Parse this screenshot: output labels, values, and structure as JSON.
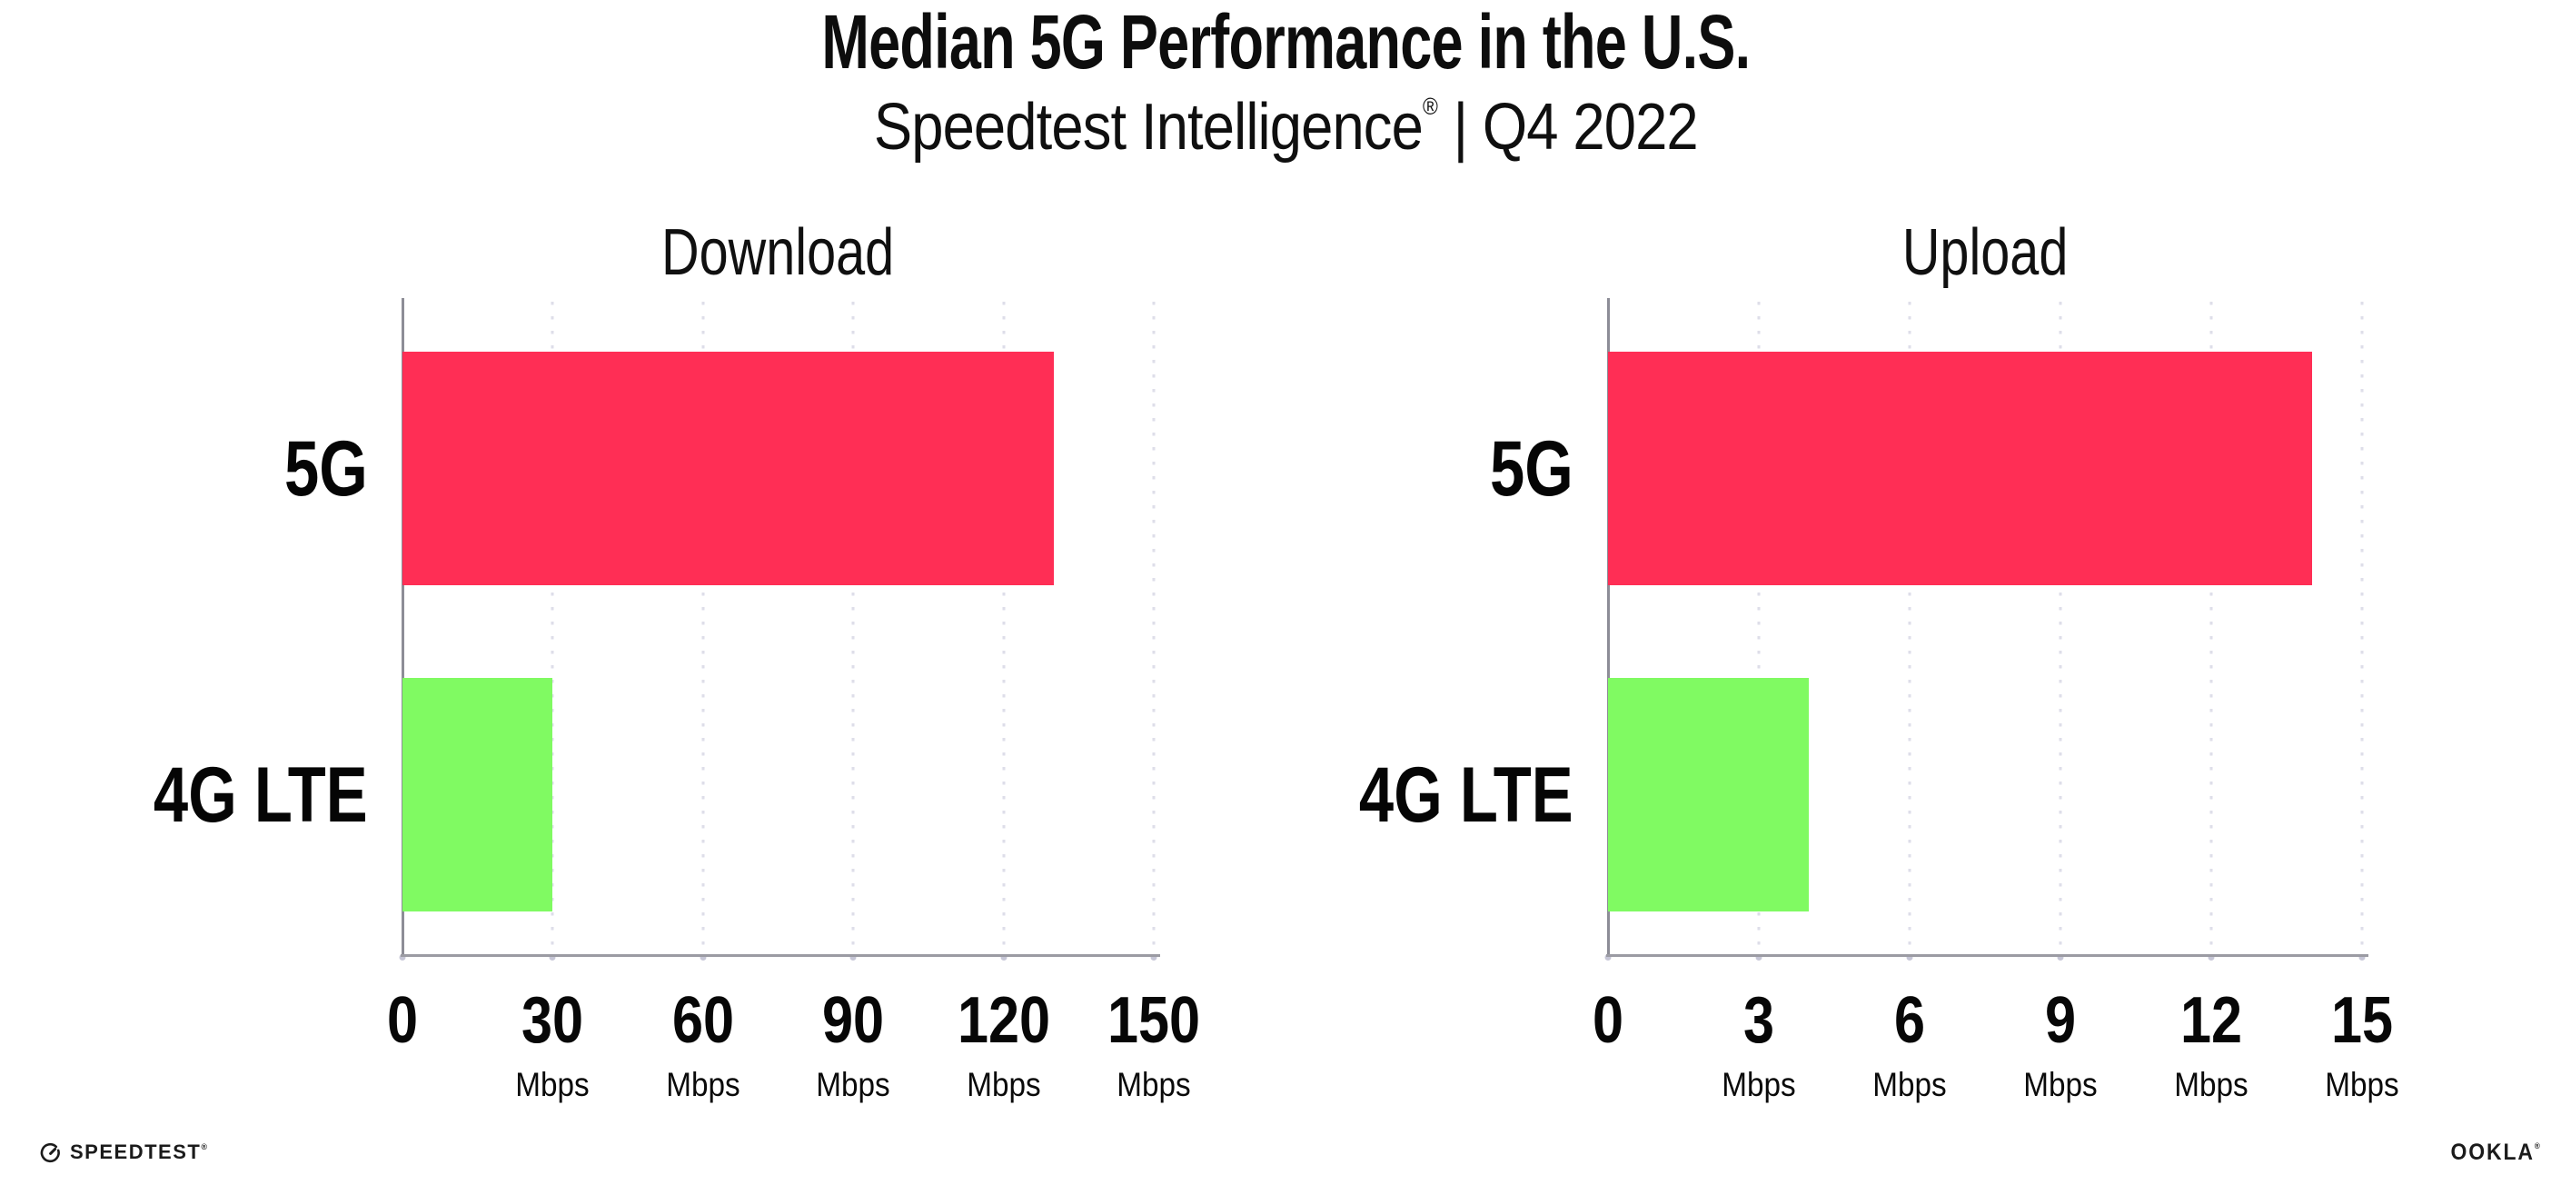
{
  "header": {
    "title": "Median 5G Performance in the U.S.",
    "subtitle_brand": "Speedtest Intelligence",
    "subtitle_reg": "®",
    "subtitle_rest": " | Q4 2022"
  },
  "colors": {
    "bar_5g": "#FF2E55",
    "bar_4g_lte": "#80FA62",
    "gridline": "#dedee9",
    "axis_y": "#8d8d97",
    "axis_x": "#9b9ba3",
    "text": "#0d0d0d"
  },
  "chart_data": [
    {
      "type": "bar",
      "orientation": "horizontal",
      "title": "Download",
      "categories": [
        "5G",
        "4G LTE"
      ],
      "values": [
        130,
        30
      ],
      "unit": "Mbps",
      "xlim": [
        0,
        150
      ],
      "xticks": [
        0,
        30,
        60,
        90,
        120,
        150
      ],
      "grid": "vertical-dotted",
      "legend": "none",
      "bar_colors": [
        "#FF2E55",
        "#80FA62"
      ]
    },
    {
      "type": "bar",
      "orientation": "horizontal",
      "title": "Upload",
      "categories": [
        "5G",
        "4G LTE"
      ],
      "values": [
        14,
        4
      ],
      "unit": "Mbps",
      "xlim": [
        0,
        15
      ],
      "xticks": [
        0,
        3,
        6,
        9,
        12,
        15
      ],
      "grid": "vertical-dotted",
      "legend": "none",
      "bar_colors": [
        "#FF2E55",
        "#80FA62"
      ]
    }
  ],
  "footer": {
    "speedtest_label": "SPEEDTEST",
    "speedtest_reg": "®",
    "ookla_label": "OOKLA",
    "ookla_reg": "®"
  }
}
